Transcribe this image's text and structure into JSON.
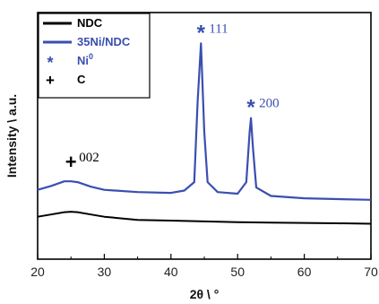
{
  "chart_data": {
    "type": "line",
    "xlabel": "2θ \\ °",
    "ylabel": "Intensity \\ a.u.",
    "xlim": [
      20,
      70
    ],
    "xticks": [
      "20",
      "30",
      "40",
      "50",
      "60",
      "70"
    ],
    "y_ticks_shown": false,
    "legend_position": "top-left",
    "series": [
      {
        "name": "NDC",
        "color": "#000000",
        "x": [
          20,
          22,
          24,
          25,
          26,
          28,
          30,
          35,
          40,
          45,
          50,
          55,
          60,
          65,
          70
        ],
        "y": [
          0.1,
          0.13,
          0.16,
          0.165,
          0.16,
          0.13,
          0.1,
          0.06,
          0.05,
          0.04,
          0.03,
          0.025,
          0.02,
          0.015,
          0.01
        ]
      },
      {
        "name": "35Ni/NDC",
        "color": "#3a4fb0",
        "x": [
          20,
          22,
          24,
          25,
          26,
          28,
          30,
          35,
          40,
          42,
          43.5,
          44.0,
          44.5,
          45.0,
          45.5,
          47,
          50,
          51.3,
          51.8,
          52.0,
          52.3,
          52.8,
          55,
          60,
          65,
          70
        ],
        "y": [
          0.45,
          0.5,
          0.56,
          0.56,
          0.55,
          0.49,
          0.45,
          0.42,
          0.41,
          0.44,
          0.55,
          1.6,
          2.35,
          1.2,
          0.55,
          0.42,
          0.4,
          0.55,
          1.2,
          1.38,
          1.0,
          0.48,
          0.37,
          0.34,
          0.33,
          0.32
        ]
      }
    ],
    "legend": [
      {
        "label": "NDC",
        "symbol": "line",
        "color": "#000000"
      },
      {
        "label": "35Ni/NDC",
        "symbol": "line",
        "color": "#3a4fb0"
      },
      {
        "label": "Ni",
        "sup": "0",
        "symbol": "*",
        "color": "#3a4fb0"
      },
      {
        "label": "C",
        "symbol": "+",
        "color": "#000000"
      }
    ],
    "annotations": [
      {
        "text": "111",
        "marker": "*",
        "x": 44.5,
        "color": "#3a4fb0"
      },
      {
        "text": "200",
        "marker": "*",
        "x": 52.0,
        "color": "#3a4fb0"
      },
      {
        "text": "002",
        "marker": "+",
        "x": 25.0,
        "color": "#000000"
      }
    ]
  }
}
